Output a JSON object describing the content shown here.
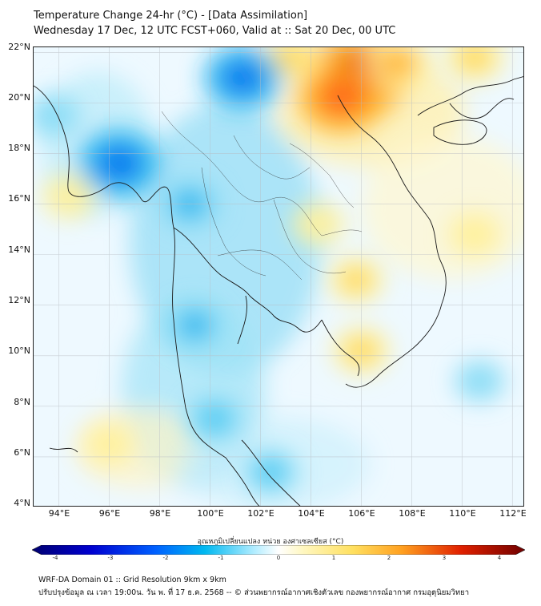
{
  "title": {
    "line1": "Temperature Change 24-hr (°C) - [Data Assimilation]",
    "line2": "Wednesday 17 Dec, 12 UTC FCST+060, Valid at :: Sat 20 Dec, 00 UTC"
  },
  "map": {
    "lon_range": [
      93,
      112.5
    ],
    "lat_range": [
      4,
      22.2
    ],
    "x_ticks": [
      {
        "value": 94,
        "label": "94°E"
      },
      {
        "value": 96,
        "label": "96°E"
      },
      {
        "value": 98,
        "label": "98°E"
      },
      {
        "value": 100,
        "label": "100°E"
      },
      {
        "value": 102,
        "label": "102°E"
      },
      {
        "value": 104,
        "label": "104°E"
      },
      {
        "value": 106,
        "label": "106°E"
      },
      {
        "value": 108,
        "label": "108°E"
      },
      {
        "value": 110,
        "label": "110°E"
      },
      {
        "value": 112,
        "label": "112°E"
      }
    ],
    "y_ticks": [
      {
        "value": 22,
        "label": "22°N"
      },
      {
        "value": 20,
        "label": "20°N"
      },
      {
        "value": 18,
        "label": "18°N"
      },
      {
        "value": 16,
        "label": "16°N"
      },
      {
        "value": 14,
        "label": "14°N"
      },
      {
        "value": 12,
        "label": "12°N"
      },
      {
        "value": 10,
        "label": "10°N"
      },
      {
        "value": 8,
        "label": "8°N"
      },
      {
        "value": 6,
        "label": "6°N"
      },
      {
        "value": 4,
        "label": "4°N"
      }
    ],
    "features": [
      {
        "kind": "warm",
        "lon": 105.8,
        "lat": 21.1,
        "value": 3.4
      },
      {
        "kind": "warm",
        "lon": 105.2,
        "lat": 20.2,
        "value": 2.4
      },
      {
        "kind": "warm",
        "lon": 107.5,
        "lat": 21.6,
        "value": 1.3
      },
      {
        "kind": "warm",
        "lon": 103.2,
        "lat": 21.8,
        "value": 1.0
      },
      {
        "kind": "warm",
        "lon": 110.5,
        "lat": 21.8,
        "value": 1.0
      },
      {
        "kind": "warm",
        "lon": 105.8,
        "lat": 13.0,
        "value": 0.8
      },
      {
        "kind": "warm",
        "lon": 106.0,
        "lat": 10.2,
        "value": 0.9
      },
      {
        "kind": "warm",
        "lon": 104.3,
        "lat": 15.2,
        "value": 0.6
      },
      {
        "kind": "warm",
        "lon": 94.4,
        "lat": 16.3,
        "value": 0.7
      },
      {
        "kind": "warm",
        "lon": 110.5,
        "lat": 14.8,
        "value": 0.6
      },
      {
        "kind": "warm",
        "lon": 96.0,
        "lat": 6.5,
        "value": 0.5
      },
      {
        "kind": "cold",
        "lon": 101.3,
        "lat": 21.0,
        "value": -2.0
      },
      {
        "kind": "cold",
        "lon": 96.4,
        "lat": 17.6,
        "value": -2.2
      },
      {
        "kind": "cold",
        "lon": 99.2,
        "lat": 16.0,
        "value": -1.1
      },
      {
        "kind": "cold",
        "lon": 99.4,
        "lat": 11.2,
        "value": -1.0
      },
      {
        "kind": "cold",
        "lon": 100.2,
        "lat": 7.5,
        "value": -0.9
      },
      {
        "kind": "cold",
        "lon": 102.4,
        "lat": 5.4,
        "value": -0.8
      },
      {
        "kind": "cold",
        "lon": 93.8,
        "lat": 19.5,
        "value": -0.6
      },
      {
        "kind": "cold",
        "lon": 110.7,
        "lat": 9.0,
        "value": -0.5
      }
    ]
  },
  "colorbar": {
    "label": "อุณหภูมิเปลี่ยนแปลง หน่วย องศาเซลเซียส (°C)",
    "min": -4,
    "max": 4,
    "ticks": [
      "-4",
      "-3",
      "-2",
      "-1",
      "0",
      "1",
      "2",
      "3",
      "4"
    ]
  },
  "footer": {
    "line1": "WRF-DA Domain 01 :: Grid Resolution 9km x 9km",
    "line2": "ปรับปรุงข้อมูล ณ เวลา 19:00น. วัน พ. ที่ 17 ธ.ค. 2568 -- © ส่วนพยากรณ์อากาศเชิงตัวเลข กองพยากรณ์อากาศ กรมอุตุนิยมวิทยา"
  }
}
